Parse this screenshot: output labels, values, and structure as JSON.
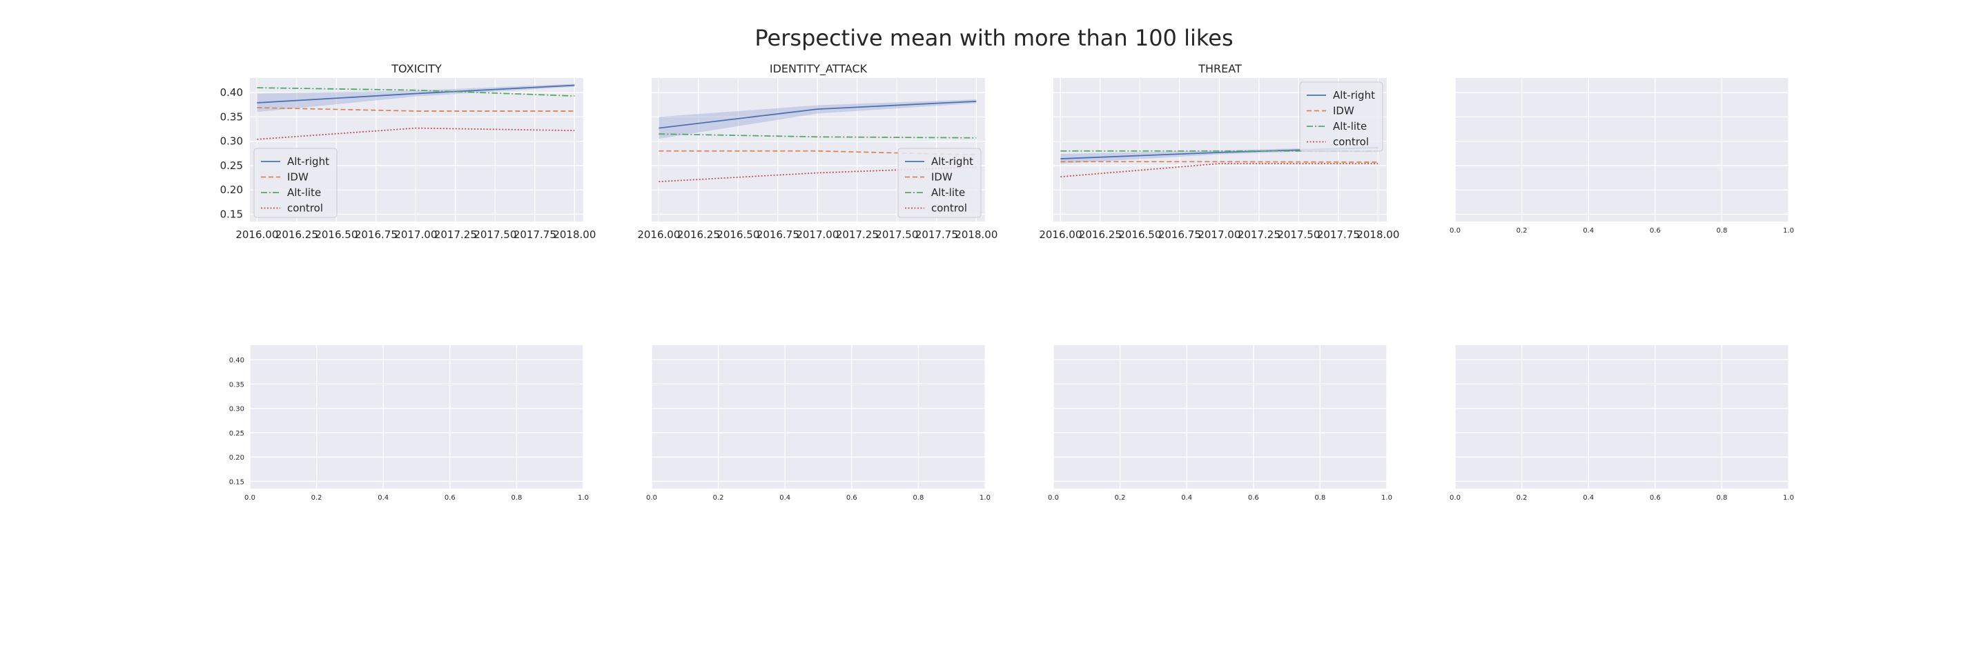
{
  "figure_title": "Perspective mean with more than 100 likes",
  "colors": {
    "panel_bg": "#EAEAF2",
    "grid": "#FFFFFF",
    "text": "#262626",
    "alt_right": "#4C72B0",
    "idw": "#DD8452",
    "alt_lite": "#55A868",
    "control": "#C44E52",
    "band": "#A1B0D6"
  },
  "chart_data": [
    {
      "type": "line",
      "title": "TOXICITY",
      "xlim": [
        2015.955,
        2018.055
      ],
      "ylim": [
        0.135,
        0.43
      ],
      "x_ticks": [
        "2016.00",
        "2016.25",
        "2016.50",
        "2016.75",
        "2017.00",
        "2017.25",
        "2017.50",
        "2017.75",
        "2018.00"
      ],
      "y_ticks": [
        "0.15",
        "0.20",
        "0.25",
        "0.30",
        "0.35",
        "0.40"
      ],
      "legend": "lower-left",
      "series": [
        {
          "name": "Alt-right",
          "style": "solid",
          "x": [
            2016,
            2017,
            2018
          ],
          "values": [
            0.379,
            0.398,
            0.415
          ],
          "band_low": [
            0.36,
            0.392,
            0.412
          ],
          "band_high": [
            0.398,
            0.404,
            0.418
          ]
        },
        {
          "name": "IDW",
          "style": "dashed",
          "x": [
            2016,
            2017,
            2018
          ],
          "values": [
            0.369,
            0.362,
            0.362
          ]
        },
        {
          "name": "Alt-lite",
          "style": "dashdot",
          "x": [
            2016,
            2017,
            2018
          ],
          "values": [
            0.41,
            0.405,
            0.393
          ]
        },
        {
          "name": "control",
          "style": "dotted",
          "x": [
            2016,
            2017,
            2018
          ],
          "values": [
            0.304,
            0.327,
            0.322
          ]
        }
      ]
    },
    {
      "type": "line",
      "title": "IDENTITY_ATTACK",
      "xlim": [
        2015.955,
        2018.055
      ],
      "ylim": [
        0.135,
        0.43
      ],
      "x_ticks": [
        "2016.00",
        "2016.25",
        "2016.50",
        "2016.75",
        "2017.00",
        "2017.25",
        "2017.50",
        "2017.75",
        "2018.00"
      ],
      "y_ticks": [],
      "legend": "lower-right",
      "series": [
        {
          "name": "Alt-right",
          "style": "solid",
          "x": [
            2016,
            2017,
            2018
          ],
          "values": [
            0.327,
            0.366,
            0.382
          ],
          "band_low": [
            0.305,
            0.357,
            0.378
          ],
          "band_high": [
            0.35,
            0.374,
            0.386
          ]
        },
        {
          "name": "IDW",
          "style": "dashed",
          "x": [
            2016,
            2017,
            2018
          ],
          "values": [
            0.28,
            0.28,
            0.272
          ]
        },
        {
          "name": "Alt-lite",
          "style": "dashdot",
          "x": [
            2016,
            2017,
            2018
          ],
          "values": [
            0.315,
            0.309,
            0.307
          ]
        },
        {
          "name": "control",
          "style": "dotted",
          "x": [
            2016,
            2017,
            2018
          ],
          "values": [
            0.217,
            0.235,
            0.247
          ]
        }
      ]
    },
    {
      "type": "line",
      "title": "THREAT",
      "xlim": [
        2015.955,
        2018.055
      ],
      "ylim": [
        0.135,
        0.43
      ],
      "x_ticks": [
        "2016.00",
        "2016.25",
        "2016.50",
        "2016.75",
        "2017.00",
        "2017.25",
        "2017.50",
        "2017.75",
        "2018.00"
      ],
      "y_ticks": [],
      "legend": "upper-right",
      "series": [
        {
          "name": "Alt-right",
          "style": "solid",
          "x": [
            2016,
            2017,
            2018
          ],
          "values": [
            0.264,
            0.277,
            0.287
          ],
          "band_low": [
            0.254,
            0.273,
            0.284
          ],
          "band_high": [
            0.274,
            0.281,
            0.29
          ]
        },
        {
          "name": "IDW",
          "style": "dashed",
          "x": [
            2016,
            2017,
            2018
          ],
          "values": [
            0.258,
            0.258,
            0.257
          ]
        },
        {
          "name": "Alt-lite",
          "style": "dashdot",
          "x": [
            2016,
            2017,
            2018
          ],
          "values": [
            0.28,
            0.28,
            0.28
          ]
        },
        {
          "name": "control",
          "style": "dotted",
          "x": [
            2016,
            2017,
            2018
          ],
          "values": [
            0.227,
            0.254,
            0.254
          ]
        }
      ]
    },
    {
      "type": "line",
      "title": "",
      "xlim": [
        0,
        1
      ],
      "ylim": [
        0.135,
        0.43
      ],
      "x_ticks": [
        "0.0",
        "0.2",
        "0.4",
        "0.6",
        "0.8",
        "1.0"
      ],
      "y_ticks": [],
      "series": []
    },
    {
      "type": "line",
      "title": "",
      "xlim": [
        0,
        1
      ],
      "ylim": [
        0.135,
        0.43
      ],
      "x_ticks": [
        "0.0",
        "0.2",
        "0.4",
        "0.6",
        "0.8",
        "1.0"
      ],
      "y_ticks": [
        "0.15",
        "0.20",
        "0.25",
        "0.30",
        "0.35",
        "0.40"
      ],
      "series": []
    },
    {
      "type": "line",
      "title": "",
      "xlim": [
        0,
        1
      ],
      "ylim": [
        0.135,
        0.43
      ],
      "x_ticks": [
        "0.0",
        "0.2",
        "0.4",
        "0.6",
        "0.8",
        "1.0"
      ],
      "y_ticks": [],
      "series": []
    },
    {
      "type": "line",
      "title": "",
      "xlim": [
        0,
        1
      ],
      "ylim": [
        0.135,
        0.43
      ],
      "x_ticks": [
        "0.0",
        "0.2",
        "0.4",
        "0.6",
        "0.8",
        "1.0"
      ],
      "y_ticks": [],
      "series": []
    },
    {
      "type": "line",
      "title": "",
      "xlim": [
        0,
        1
      ],
      "ylim": [
        0.135,
        0.43
      ],
      "x_ticks": [
        "0.0",
        "0.2",
        "0.4",
        "0.6",
        "0.8",
        "1.0"
      ],
      "y_ticks": [],
      "series": []
    }
  ]
}
